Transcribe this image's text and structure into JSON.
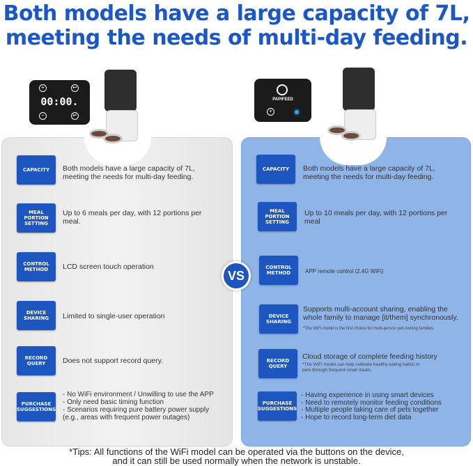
{
  "title": {
    "line1": "Both models have a large capacity of 7L,",
    "line2": "meeting the needs of multi-day feeding."
  },
  "left_device": {
    "display": "00:00.",
    "buttons": [
      "plus-icon",
      "back-icon",
      "minus-icon",
      "enter-icon"
    ]
  },
  "right_device": {
    "brand": "PAPIFEED",
    "buttons": [
      "plus-icon"
    ],
    "indicator_color": "#2aa8ff"
  },
  "vs": "VS",
  "left": {
    "rows": [
      {
        "label": "CAPACITY",
        "text": "Both models have a large capacity of 7L, meeting the needs for multi-day feeding."
      },
      {
        "label": "MEAL PORTION SETTING",
        "text": "Up to 6 meals per day, with 12 portions per meal."
      },
      {
        "label": "CONTROL METHOD",
        "text": "LCD screen touch operation"
      },
      {
        "label": "DEVICE SHARING",
        "text": "Limited to single-user operation"
      },
      {
        "label": "RECORD QUERY",
        "text": "Does not support record query."
      },
      {
        "label": "PURCHASE SUGGESTIONS",
        "lines": [
          "- No WiFi environment / Unwilling to use the APP",
          "- Only need basic timing function",
          "- Scenarios requiring pure battery power supply",
          "(e.g., areas with frequent power outages)"
        ]
      }
    ]
  },
  "right": {
    "rows": [
      {
        "label": "CAPACITY",
        "text": "Both models have a large capacity of 7L, meeting the needs for multi-day feeding."
      },
      {
        "label": "MEAL PORTION SETTING",
        "text": "Up to 10 meals per day, with 12 portions per meal"
      },
      {
        "label": "CONTROL METHOD",
        "text": "APP remote control (2.4G WiFi)"
      },
      {
        "label": "DEVICE SHARING",
        "text": "Supports multi-account sharing, enabling the whole family to manage [it/them] synchronously.",
        "note": "*The WiFi model is the first choice for multi-person pet-owning families."
      },
      {
        "label": "RECORD QUERY",
        "text": "Cloud storage of complete feeding history",
        "note": "*The WiFi model can help cultivate healthy eating habits in pets through frequent small meals."
      },
      {
        "label": "PURCHASE SUGGESTIONS",
        "lines": [
          "- Having experience in using smart devices",
          "- Need to remotely monitor feeding conditions",
          "- Multiple people taking care of pets together",
          "- Hope to record long-term diet data"
        ]
      }
    ]
  },
  "tips": {
    "line1": "*Tips: All functions of the WiFi model can be operated via the buttons on the device,",
    "line2": "and it can still be used normally when the network is unstable."
  },
  "colors": {
    "brand_blue": "#1d56c0",
    "title_blue": "#1c57c6",
    "right_panel": "#8fb4e8",
    "left_panel": "#ececec"
  }
}
